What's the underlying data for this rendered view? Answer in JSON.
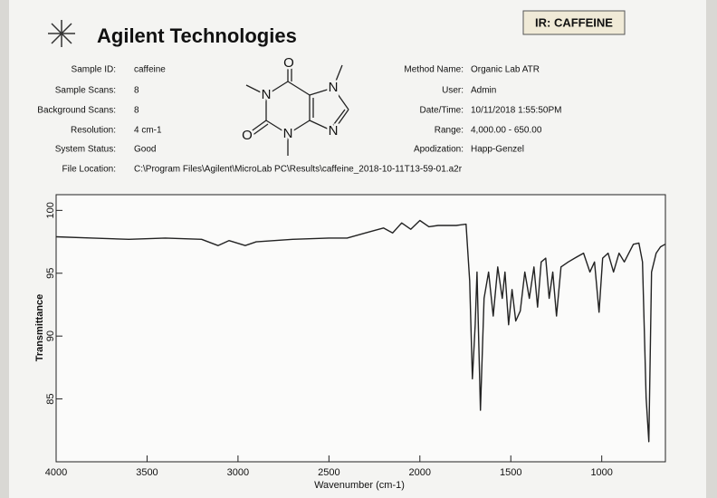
{
  "header": {
    "brand": "Agilent Technologies",
    "badge": "IR: CAFFEINE",
    "left_fields": [
      {
        "label": "Sample ID:",
        "value": "caffeine"
      },
      {
        "label": "Sample Scans:",
        "value": "8"
      },
      {
        "label": "Background Scans:",
        "value": "8"
      },
      {
        "label": "Resolution:",
        "value": "4 cm-1"
      },
      {
        "label": "System Status:",
        "value": "Good"
      },
      {
        "label": "File Location:",
        "value": "C:\\Program Files\\Agilent\\MicroLab PC\\Results\\caffeine_2018-10-11T13-59-01.a2r"
      }
    ],
    "right_fields": [
      {
        "label": "Method Name:",
        "value": "Organic Lab ATR"
      },
      {
        "label": "User:",
        "value": "Admin"
      },
      {
        "label": "Date/Time:",
        "value": "10/11/2018  1:55:50PM"
      },
      {
        "label": "Range:",
        "value": "4,000.00 - 650.00"
      },
      {
        "label": "Apodization:",
        "value": "Happ-Genzel"
      }
    ],
    "molecule_atoms": [
      "O",
      "N",
      "O",
      "N",
      "N",
      "N"
    ]
  },
  "chart_data": {
    "type": "line",
    "x_label": "Wavenumber (cm-1)",
    "y_label": "Transmittance",
    "xlim": [
      4000,
      650
    ],
    "ylim": [
      80,
      101.25
    ],
    "xticks": [
      4000,
      3500,
      3000,
      2500,
      2000,
      1500,
      1000
    ],
    "yticks": [
      85,
      90,
      95,
      100
    ],
    "grid": false,
    "series": [
      {
        "name": "caffeine",
        "color": "#222222",
        "x": [
          4000,
          3800,
          3600,
          3400,
          3200,
          3110,
          3050,
          2960,
          2900,
          2700,
          2500,
          2400,
          2300,
          2200,
          2150,
          2100,
          2050,
          2000,
          1950,
          1900,
          1800,
          1746,
          1726,
          1711,
          1696,
          1686,
          1667,
          1647,
          1622,
          1597,
          1572,
          1547,
          1532,
          1512,
          1493,
          1473,
          1448,
          1423,
          1398,
          1373,
          1353,
          1333,
          1308,
          1289,
          1269,
          1249,
          1224,
          1184,
          1149,
          1100,
          1065,
          1040,
          1015,
          995,
          965,
          935,
          905,
          876,
          826,
          796,
          776,
          756,
          741,
          726,
          701,
          677,
          652
        ],
        "values": [
          97.9,
          97.8,
          97.7,
          97.8,
          97.7,
          97.2,
          97.6,
          97.2,
          97.5,
          97.7,
          97.8,
          97.8,
          98.2,
          98.6,
          98.2,
          99.0,
          98.5,
          99.2,
          98.7,
          98.8,
          98.8,
          98.9,
          94.4,
          86.6,
          90.9,
          95.1,
          84.1,
          93.0,
          95.1,
          91.6,
          95.5,
          93.0,
          95.1,
          90.9,
          93.7,
          91.2,
          92.0,
          95.1,
          93.0,
          95.5,
          92.3,
          95.9,
          96.2,
          93.0,
          95.1,
          91.6,
          95.5,
          95.9,
          96.2,
          96.6,
          95.1,
          95.9,
          91.9,
          96.2,
          96.6,
          95.1,
          96.6,
          95.9,
          97.3,
          97.4,
          95.9,
          85.1,
          81.6,
          95.1,
          96.6,
          97.1,
          97.3
        ]
      }
    ]
  }
}
